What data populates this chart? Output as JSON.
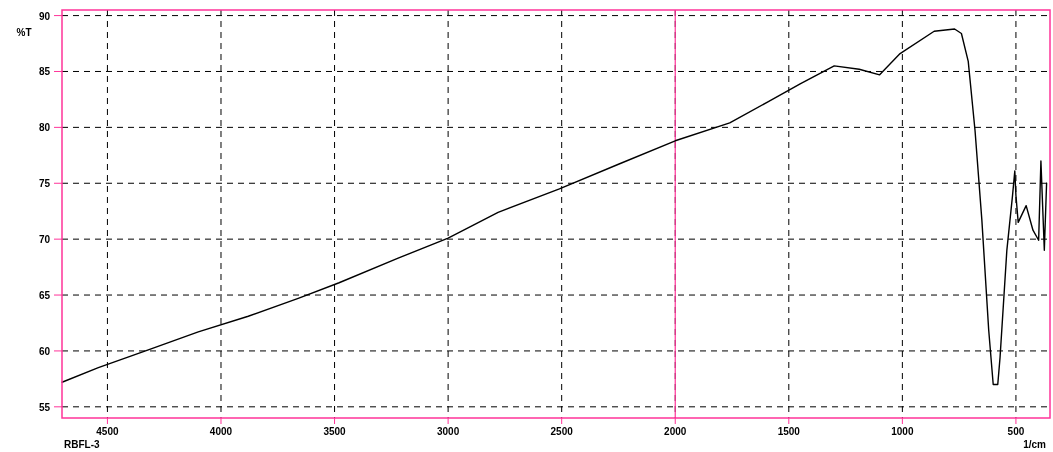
{
  "chart_data": {
    "type": "line",
    "ylabel": "%T",
    "xlabel": "1/cm",
    "annotations": [
      "RBFL-3"
    ],
    "x": [
      4700,
      4540,
      4320,
      4100,
      3880,
      3660,
      3480,
      3220,
      3000,
      2780,
      2510,
      2250,
      2000,
      1760,
      1590,
      1450,
      1300,
      1190,
      1100,
      1010,
      860,
      770,
      740,
      710,
      680,
      650,
      620,
      600,
      580,
      570,
      540,
      515,
      505,
      500,
      490,
      455,
      425,
      400,
      390,
      375,
      365
    ],
    "series": [
      {
        "color": "#000000",
        "values": [
          57.2,
          58.5,
          60.1,
          61.7,
          63.1,
          64.7,
          66.1,
          68.3,
          70.1,
          72.4,
          74.5,
          76.7,
          78.8,
          80.4,
          82.3,
          83.9,
          85.5,
          85.2,
          84.7,
          86.6,
          88.6,
          88.8,
          88.4,
          85.9,
          79.7,
          71.7,
          61.9,
          57.0,
          57.0,
          59.4,
          69.0,
          73.9,
          76.1,
          73.9,
          71.5,
          73.0,
          70.8,
          69.9,
          77.0,
          69.0,
          75.0
        ]
      }
    ],
    "xlim": [
      4700,
      350
    ],
    "ylim": [
      54,
      90.5
    ],
    "xticks": [
      4500,
      4000,
      3500,
      3000,
      2500,
      2000,
      1500,
      1000,
      500
    ],
    "yticks": [
      90,
      85,
      80,
      75,
      70,
      65,
      60,
      55
    ],
    "grid": true,
    "line_style": "solid",
    "marker": "none",
    "ref_lines": [
      {
        "axis": "x",
        "value": 2000,
        "color": "#ff3399"
      }
    ]
  }
}
